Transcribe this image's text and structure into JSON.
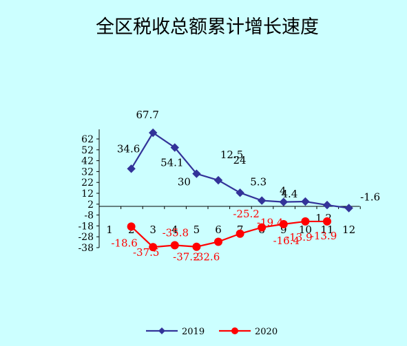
{
  "chart_data": {
    "type": "line",
    "title": "全区税收总额累计增长速度",
    "categories": [
      "1",
      "2",
      "3",
      "4",
      "5",
      "6",
      "7",
      "8",
      "9",
      "10",
      "11",
      "12"
    ],
    "y_ticks": [
      "62",
      "52",
      "42",
      "32",
      "22",
      "12",
      "2",
      "-8",
      "-18",
      "-28",
      "-38"
    ],
    "ylim": [
      -38,
      62
    ],
    "grid": false,
    "legend_position": "bottom",
    "series": [
      {
        "name": "2019",
        "color": "#333399",
        "marker": "diamond",
        "values": [
          null,
          34.6,
          67.7,
          54.1,
          30,
          24,
          12.5,
          5.3,
          4,
          4.4,
          1.2,
          -1.6
        ],
        "labels": [
          "",
          "34.6",
          "67.7",
          "54.1",
          "30",
          "24",
          "12.5",
          "5.3",
          "4",
          "4.4",
          "1.2",
          "-1.6"
        ]
      },
      {
        "name": "2020",
        "color": "#ff0000",
        "marker": "circle",
        "values": [
          null,
          -18.6,
          -37.5,
          -35.8,
          -37.2,
          -32.6,
          -25.2,
          -19.4,
          -16.4,
          -13.9,
          -13.9,
          null
        ],
        "labels": [
          "",
          "-18.6",
          "-37.5",
          "-35.8",
          "-37.2",
          "-32.6",
          "-25.2",
          "-19.4",
          "-16.4",
          "-13.9",
          "-13.9",
          ""
        ]
      }
    ]
  }
}
